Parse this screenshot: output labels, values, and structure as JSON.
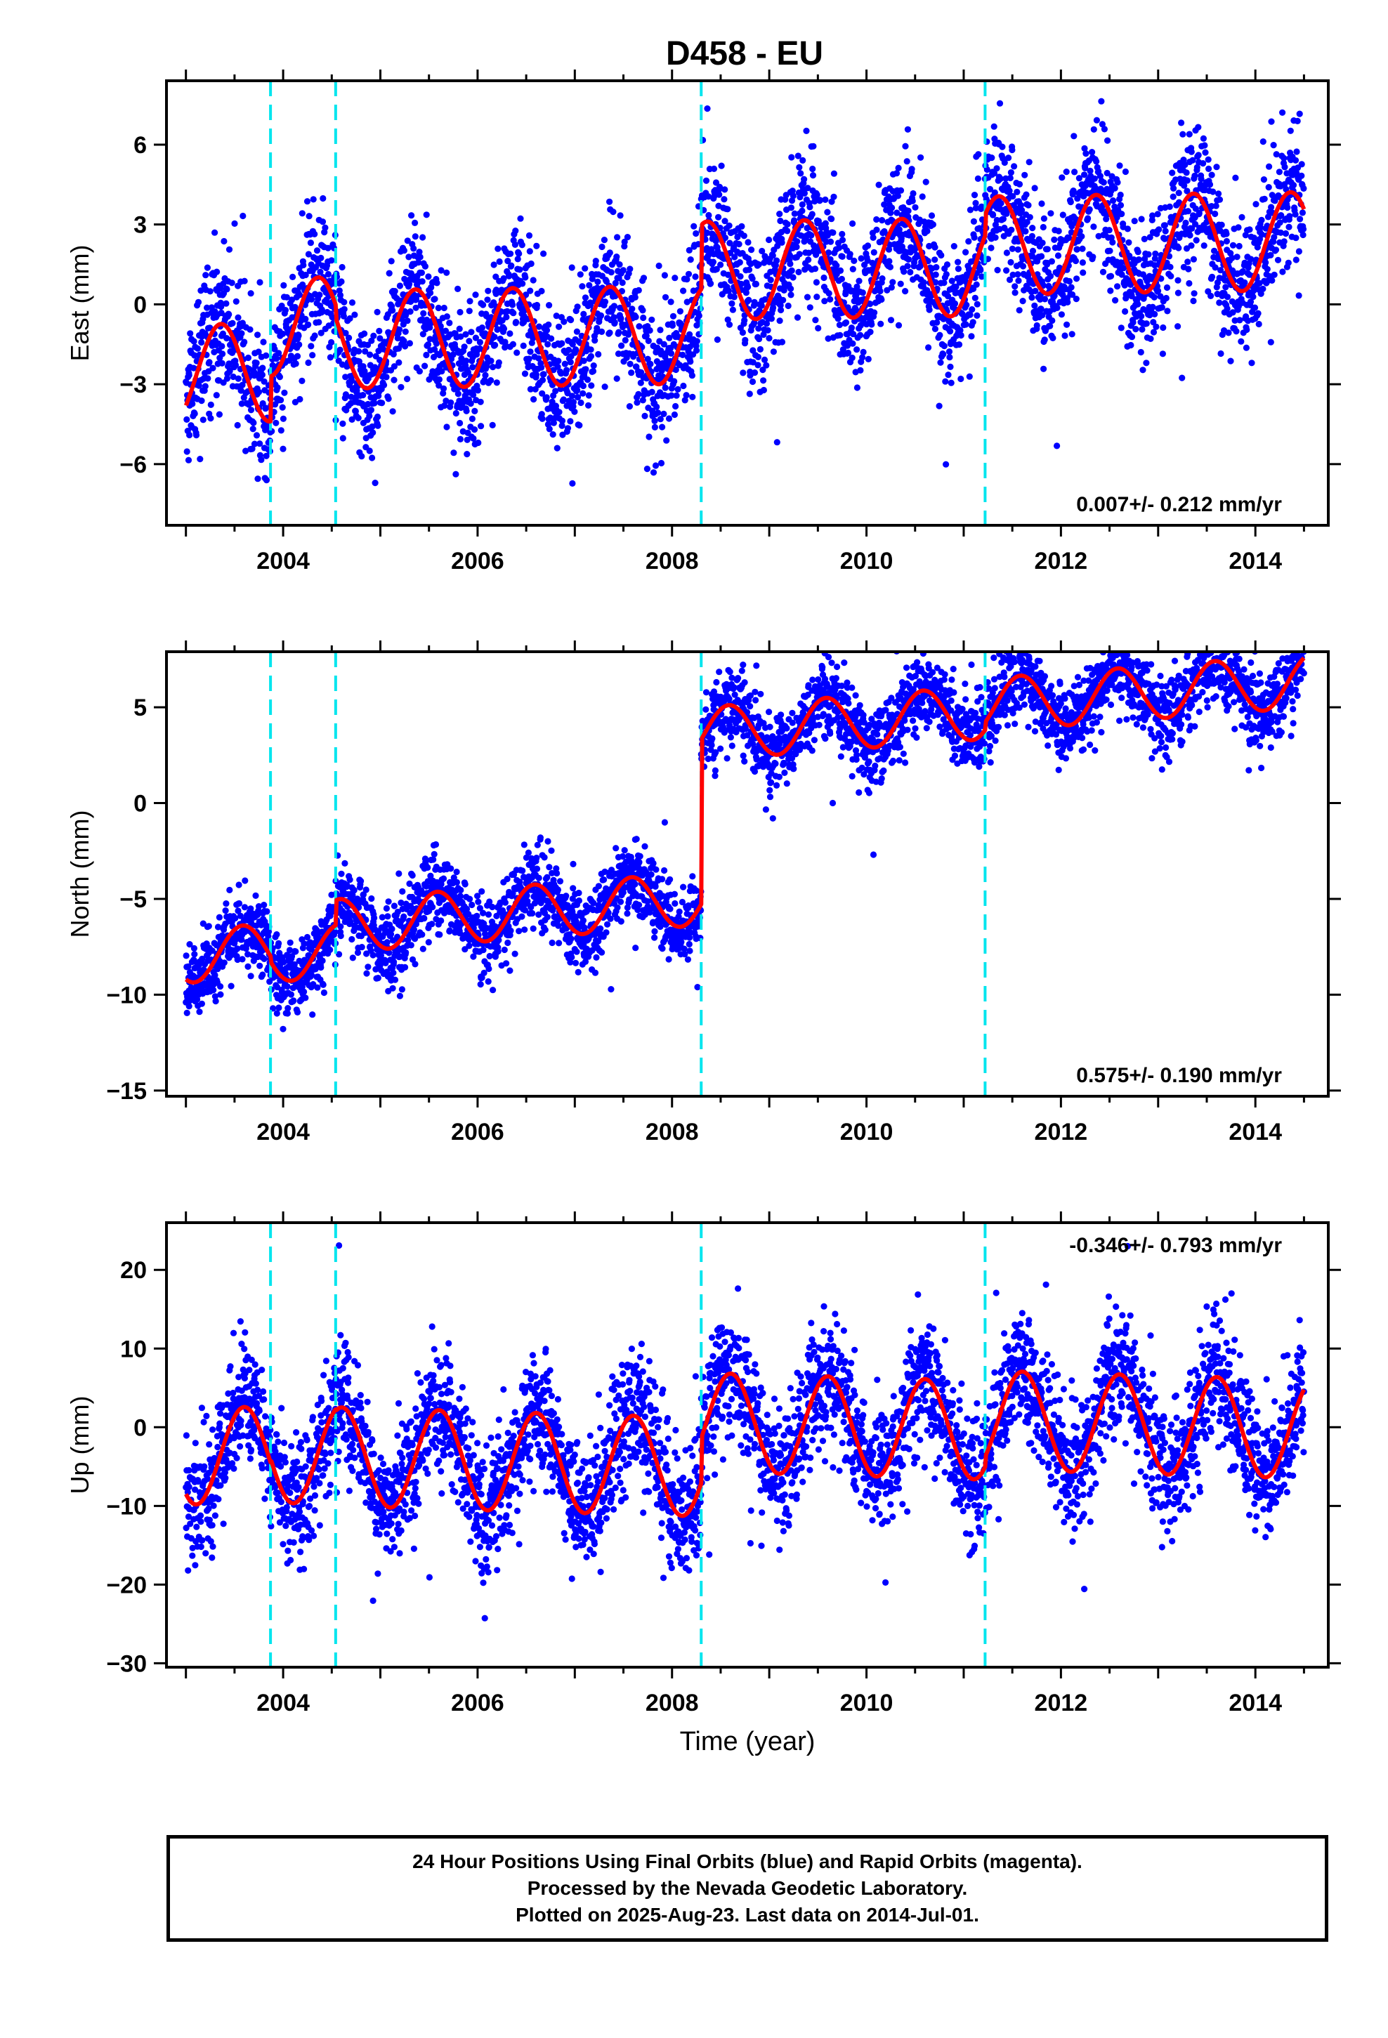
{
  "title": "D458 - EU",
  "colors": {
    "final_orbits": "#0000ff",
    "fit_line": "#ff0000",
    "offset_line": "#00e5ee",
    "frame": "#000000"
  },
  "chart_data": [
    {
      "type": "scatter",
      "name": "east",
      "ylabel": "East (mm)",
      "xlabel": "",
      "xlim": [
        2002.8,
        2014.75
      ],
      "ylim": [
        -8.3,
        8.4
      ],
      "xticks": [
        2004,
        2006,
        2008,
        2010,
        2012,
        2014
      ],
      "xtick_labels": [
        "2004",
        "2006",
        "2008",
        "2010",
        "2012",
        "2014"
      ],
      "yticks": [
        -6,
        -3,
        0,
        3,
        6
      ],
      "ytick_labels": [
        "−6",
        "−3",
        "0",
        "3",
        "6"
      ],
      "rate_label": "0.007+/- 0.212 mm/yr",
      "rate_position": "bottom-right",
      "offset_epochs": [
        2003.87,
        2004.54,
        2008.3,
        2011.22
      ],
      "model": {
        "segments": [
          [
            2003.0,
            2003.87
          ],
          [
            2003.87,
            2004.54
          ],
          [
            2004.54,
            2008.3
          ],
          [
            2008.3,
            2011.22
          ],
          [
            2011.22,
            2014.5
          ]
        ],
        "offsets": [
          -2.6,
          -0.9,
          -1.4,
          1.0,
          1.8
        ],
        "rate": 0.05,
        "annual_cos": -1.2,
        "annual_sin": 1.4,
        "noise_sd": 1.3
      }
    },
    {
      "type": "scatter",
      "name": "north",
      "ylabel": "North (mm)",
      "xlabel": "",
      "xlim": [
        2002.8,
        2014.75
      ],
      "ylim": [
        -15.3,
        7.9
      ],
      "xticks": [
        2004,
        2006,
        2008,
        2010,
        2012,
        2014
      ],
      "xtick_labels": [
        "2004",
        "2006",
        "2008",
        "2010",
        "2012",
        "2014"
      ],
      "yticks": [
        -15,
        -10,
        -5,
        0,
        5
      ],
      "ytick_labels": [
        "−15",
        "−10",
        "−5",
        "0",
        "5"
      ],
      "rate_label": "0.575+/- 0.190 mm/yr",
      "rate_position": "bottom-right",
      "offset_epochs": [
        2003.87,
        2004.54,
        2008.3,
        2011.22
      ],
      "model": {
        "segments": [
          [
            2003.0,
            2003.87
          ],
          [
            2003.87,
            2004.54
          ],
          [
            2004.54,
            2008.3
          ],
          [
            2008.3,
            2011.22
          ],
          [
            2011.22,
            2014.5
          ]
        ],
        "offsets": [
          -8.0,
          -8.3,
          -7.0,
          1.6,
          2.0
        ],
        "rate": 0.38,
        "annual_cos": -1.2,
        "annual_sin": -0.7,
        "noise_sd": 1.0
      }
    },
    {
      "type": "scatter",
      "name": "up",
      "ylabel": "Up (mm)",
      "xlabel": "Time (year)",
      "xlim": [
        2002.8,
        2014.75
      ],
      "ylim": [
        -30.5,
        26.0
      ],
      "xticks": [
        2004,
        2006,
        2008,
        2010,
        2012,
        2014
      ],
      "xtick_labels": [
        "2004",
        "2006",
        "2008",
        "2010",
        "2012",
        "2014"
      ],
      "yticks": [
        -30,
        -20,
        -10,
        0,
        10,
        20
      ],
      "ytick_labels": [
        "−30",
        "−20",
        "−10",
        "0",
        "10",
        "20"
      ],
      "rate_label": "-0.346+/- 0.793 mm/yr",
      "rate_position": "top-right",
      "offset_epochs": [
        2003.87,
        2004.54,
        2008.3,
        2011.22
      ],
      "model": {
        "segments": [
          [
            2003.0,
            2003.87
          ],
          [
            2003.87,
            2004.54
          ],
          [
            2004.54,
            2008.3
          ],
          [
            2008.3,
            2011.22
          ],
          [
            2011.22,
            2014.5
          ]
        ],
        "offsets": [
          -3.5,
          -3.0,
          -3.2,
          2.5,
          3.8
        ],
        "rate": -0.35,
        "annual_cos": -5.0,
        "annual_sin": -3.8,
        "noise_sd": 4.0
      }
    }
  ],
  "footer": {
    "line1": "24 Hour Positions Using Final Orbits (blue) and Rapid Orbits (magenta).",
    "line2": "Processed by the Nevada Geodetic Laboratory.",
    "line3": "Plotted on 2025-Aug-23. Last data on 2014-Jul-01."
  }
}
